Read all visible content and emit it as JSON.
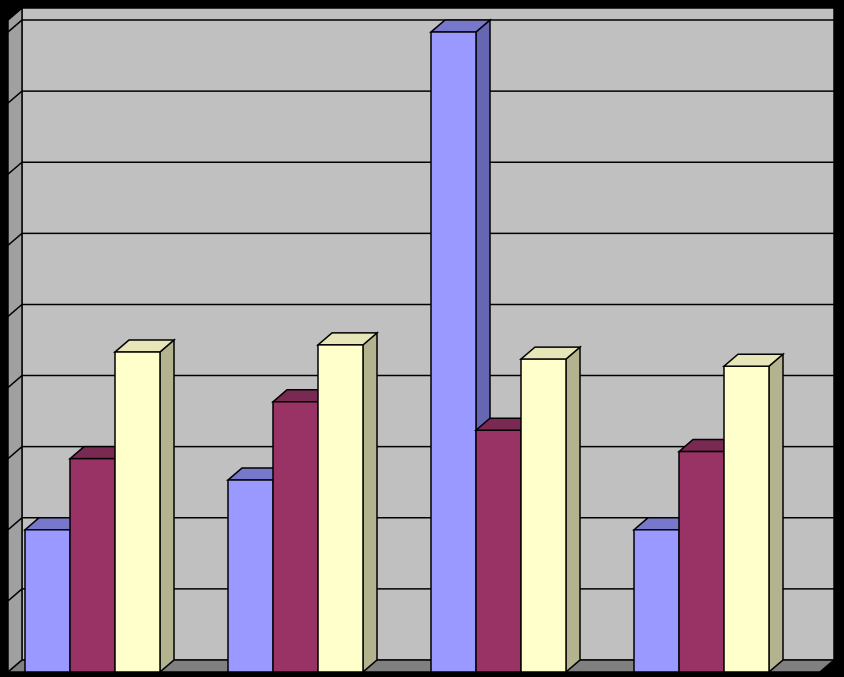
{
  "chart_data": {
    "type": "bar",
    "style": "3d-clustered-column",
    "title": "",
    "xlabel": "",
    "ylabel": "",
    "categories": [
      "",
      "",
      "",
      ""
    ],
    "series": [
      {
        "values": [
          2.0,
          2.7,
          9.0,
          2.0
        ],
        "color": "#9999ff",
        "side_color": "#6666b3",
        "top_color": "#7777cc"
      },
      {
        "values": [
          3.0,
          3.8,
          3.4,
          3.1
        ],
        "color": "#993366",
        "side_color": "#6b2447",
        "top_color": "#7a2952"
      },
      {
        "values": [
          4.5,
          4.6,
          4.4,
          4.3
        ],
        "color": "#ffffcc",
        "side_color": "#b3b38f",
        "top_color": "#e6e6b8"
      }
    ],
    "ylim": [
      0,
      9
    ],
    "grid": true,
    "legend": "none",
    "colors": {
      "background": "#000000",
      "plot_area": "#c0c0c0",
      "floor": "#808080",
      "gridline": "#000000"
    }
  }
}
